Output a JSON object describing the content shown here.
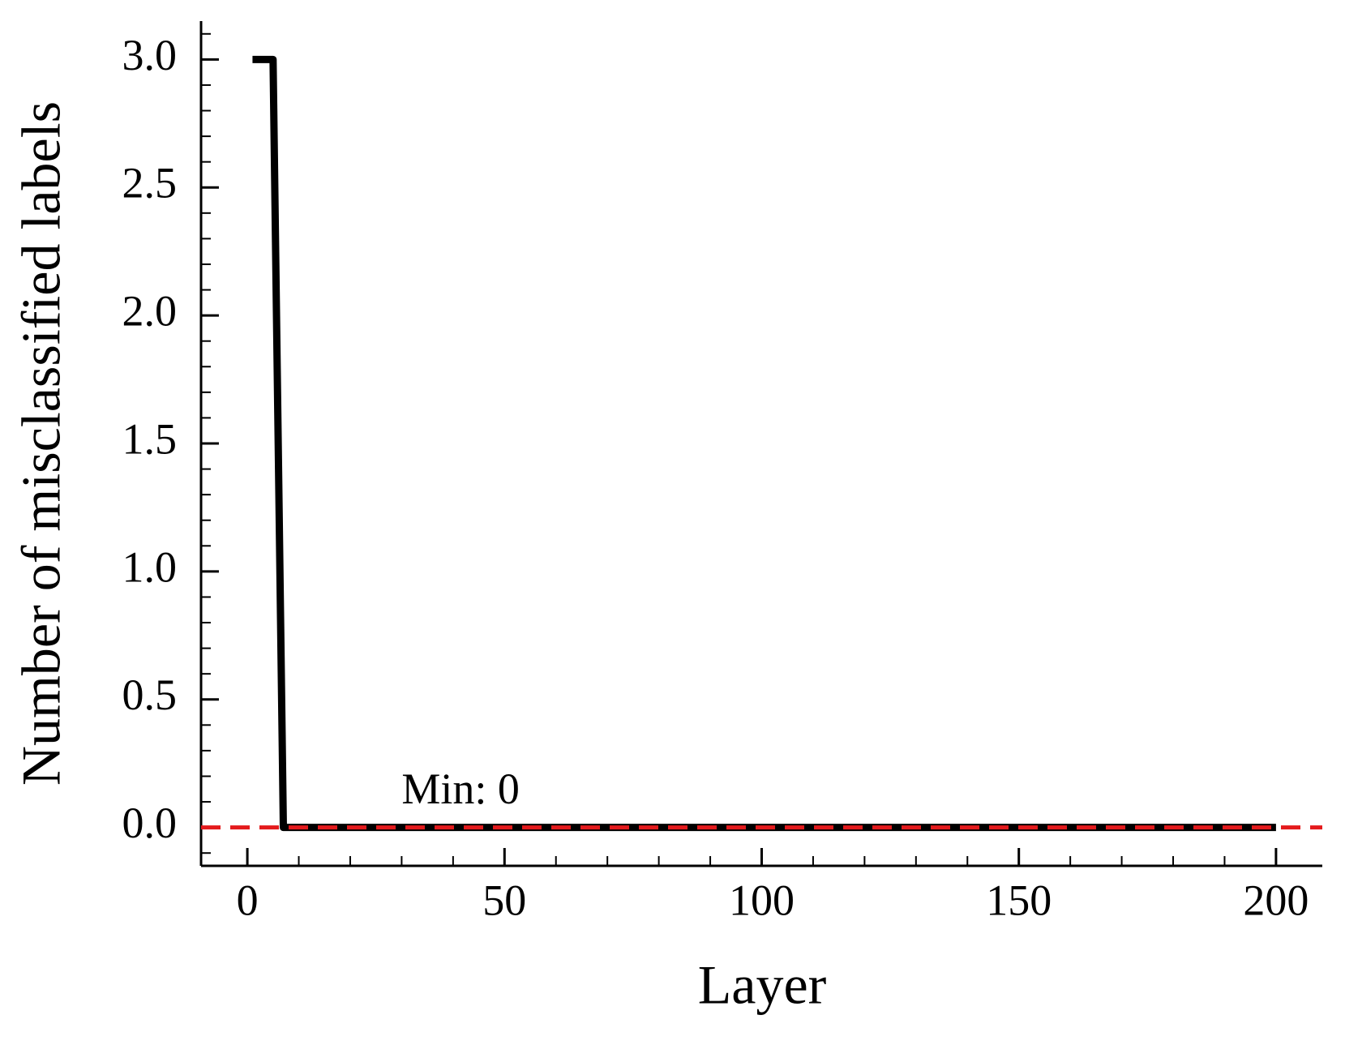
{
  "chart_data": {
    "type": "line",
    "xlabel": "Layer",
    "ylabel": "Number of misclassified labels",
    "x": [
      1,
      5,
      7,
      200
    ],
    "series": [
      {
        "color": "#000000",
        "values": [
          3,
          3,
          0,
          0
        ]
      }
    ],
    "xlim": [
      -9,
      209
    ],
    "ylim": [
      -0.15,
      3.15
    ],
    "xticks": [
      0,
      50,
      100,
      150,
      200
    ],
    "yticks": [
      {
        "value": 0,
        "label": "0.0"
      },
      {
        "value": 0.5,
        "label": "0.5"
      },
      {
        "value": 1,
        "label": "1.0"
      },
      {
        "value": 1.5,
        "label": "1.5"
      },
      {
        "value": 2,
        "label": "2.0"
      },
      {
        "value": 2.5,
        "label": "2.5"
      },
      {
        "value": 3,
        "label": "3.0"
      }
    ],
    "xminorticks": [
      10,
      20,
      30,
      40,
      60,
      70,
      80,
      90,
      110,
      120,
      130,
      140,
      160,
      170,
      180,
      190
    ],
    "yminorticks": [
      -0.1,
      0.1,
      0.2,
      0.3,
      0.4,
      0.6,
      0.7,
      0.8,
      0.9,
      1.1,
      1.2,
      1.3,
      1.4,
      1.6,
      1.7,
      1.8,
      1.9,
      2.1,
      2.2,
      2.3,
      2.4,
      2.6,
      2.7,
      2.8,
      2.9,
      3.1
    ],
    "hline": {
      "y": 0,
      "color": "#e41a1c",
      "label": "Min: 0"
    }
  }
}
